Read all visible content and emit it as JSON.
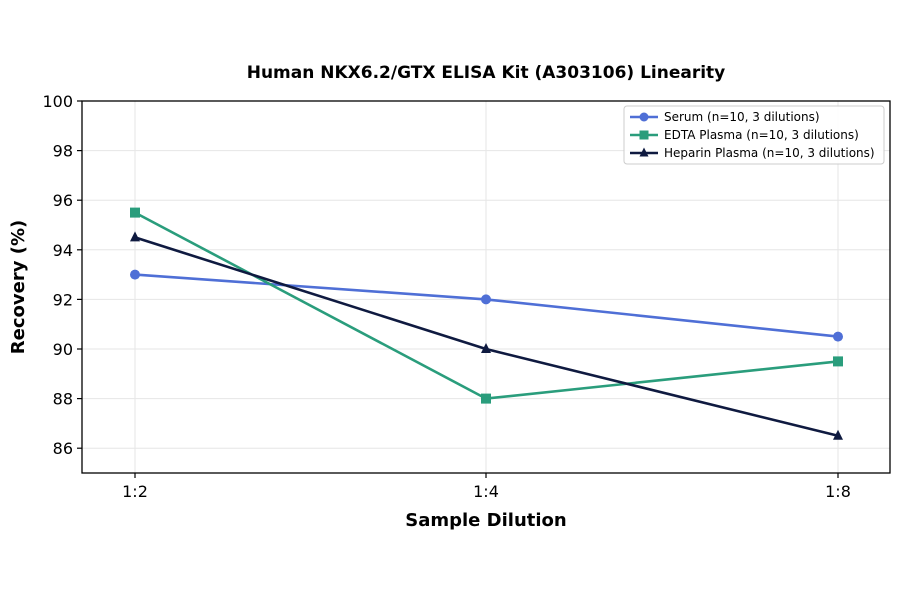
{
  "chart_data": {
    "type": "line",
    "title": "Human NKX6.2/GTX ELISA Kit (A303106) Linearity",
    "xlabel": "Sample Dilution",
    "ylabel": "Recovery (%)",
    "categories": [
      "1:2",
      "1:4",
      "1:8"
    ],
    "ylim": [
      85,
      100
    ],
    "yticks": [
      86,
      88,
      90,
      92,
      94,
      96,
      98,
      100
    ],
    "grid": true,
    "legend_position": "top-right",
    "series": [
      {
        "name": "Serum (n=10, 3 dilutions)",
        "values": [
          93.0,
          92.0,
          90.5
        ],
        "color": "#4f6fd6",
        "marker": "circle"
      },
      {
        "name": "EDTA Plasma (n=10, 3 dilutions)",
        "values": [
          95.5,
          88.0,
          89.5
        ],
        "color": "#2a9d7c",
        "marker": "square"
      },
      {
        "name": "Heparin Plasma (n=10, 3 dilutions)",
        "values": [
          94.5,
          90.0,
          86.5
        ],
        "color": "#0f1a40",
        "marker": "triangle"
      }
    ]
  }
}
